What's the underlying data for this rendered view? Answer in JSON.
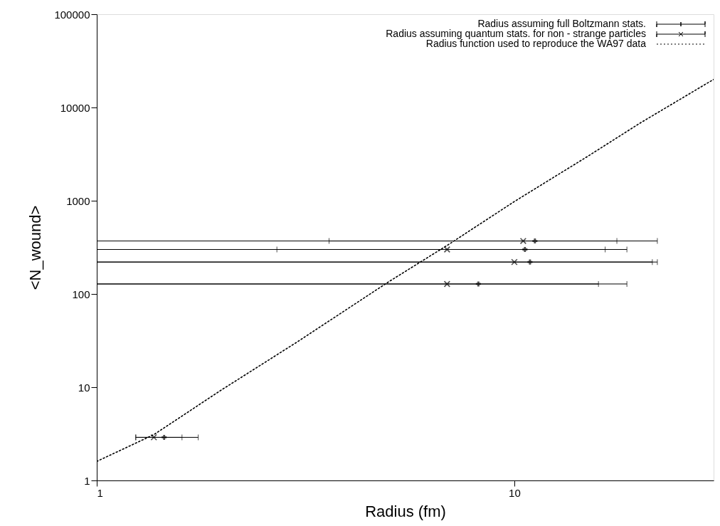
{
  "chart_data": {
    "type": "scatter",
    "xlabel": "Radius (fm)",
    "ylabel": "<N_wound>",
    "log": "xy",
    "xlim": [
      1,
      30
    ],
    "xticks": [
      1,
      10
    ],
    "ylim": [
      1,
      100000
    ],
    "yticks": [
      1,
      10,
      100,
      1000,
      10000,
      100000
    ],
    "legend": "top right",
    "series": [
      {
        "name": "Radius assuming full Boltzmann stats.",
        "color": "#000000",
        "x": [
          11.2,
          10.6,
          10.9,
          8.2,
          1.45
        ],
        "values": [
          370,
          300,
          220,
          128,
          2.9
        ],
        "xerrors": [
          [
            3.6,
            22
          ],
          [
            2.7,
            18.6
          ],
          [
            1,
            22
          ],
          [
            1,
            18.6
          ],
          [
            1.24,
            1.75
          ]
        ]
      },
      {
        "name": "Radius assuming quantum stats. for non - strange particles",
        "marker": "cross",
        "color": "#000000",
        "x": [
          10.5,
          6.9,
          10,
          6.9,
          1.37
        ],
        "values": [
          370,
          300,
          220,
          128,
          2.9
        ],
        "xerrors": [
          [
            1,
            17.6
          ],
          [
            1,
            16.5
          ],
          [
            1,
            21.4
          ],
          [
            1,
            15.9
          ],
          [
            1.24,
            1.6
          ]
        ]
      },
      {
        "name": "Radius function used to reproduce the WA97 data",
        "type": "line",
        "line_style": "dotted",
        "color": "#000000",
        "x": [
          1,
          1.37,
          2,
          3,
          5,
          7,
          10,
          15,
          20,
          30
        ],
        "values": [
          1.6,
          3.1,
          9.5,
          30,
          135,
          345,
          980,
          3000,
          6800,
          20000
        ]
      }
    ]
  }
}
